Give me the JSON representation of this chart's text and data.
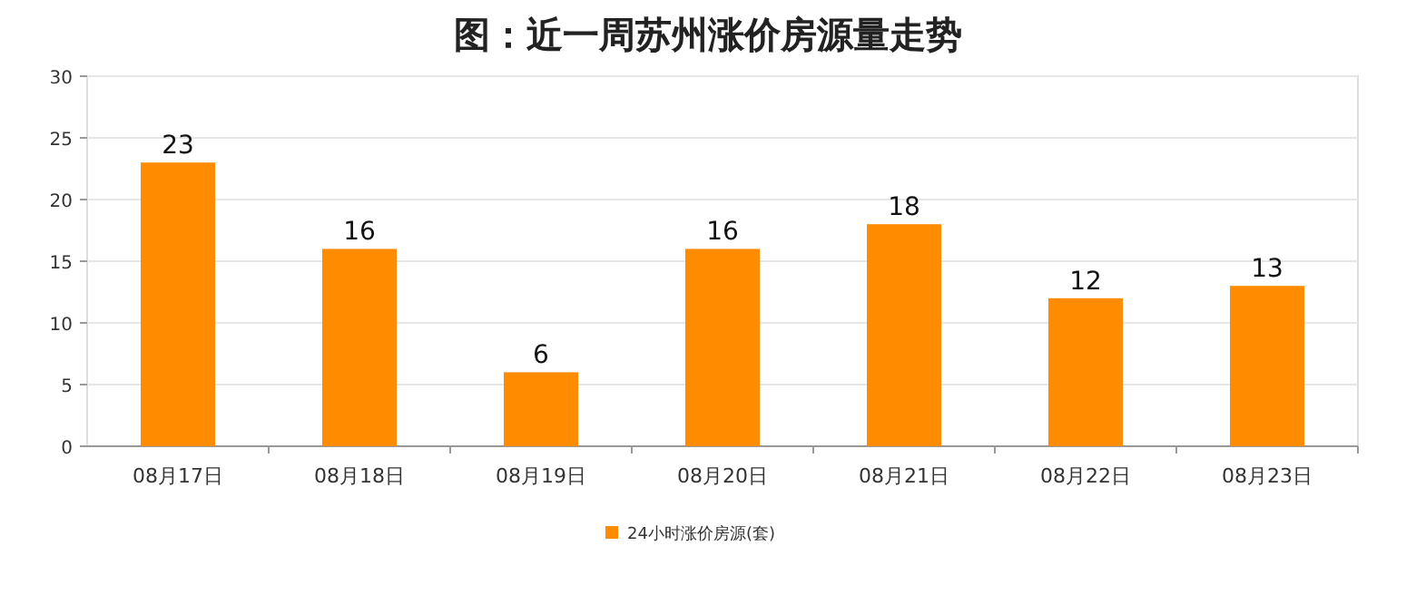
{
  "chart_data": {
    "type": "bar",
    "title": "图：近一周苏州涨价房源量走势",
    "categories": [
      "08月17日",
      "08月18日",
      "08月19日",
      "08月20日",
      "08月21日",
      "08月22日",
      "08月23日"
    ],
    "series": [
      {
        "name": "24小时涨价房源(套)",
        "color": "#ff8c00",
        "values": [
          23,
          16,
          6,
          16,
          18,
          12,
          13
        ]
      }
    ],
    "ylim": [
      0,
      30
    ],
    "yticks": [
      0,
      5,
      10,
      15,
      20,
      25,
      30
    ],
    "grid": "y",
    "legend": "bottom",
    "data_labels": true
  }
}
